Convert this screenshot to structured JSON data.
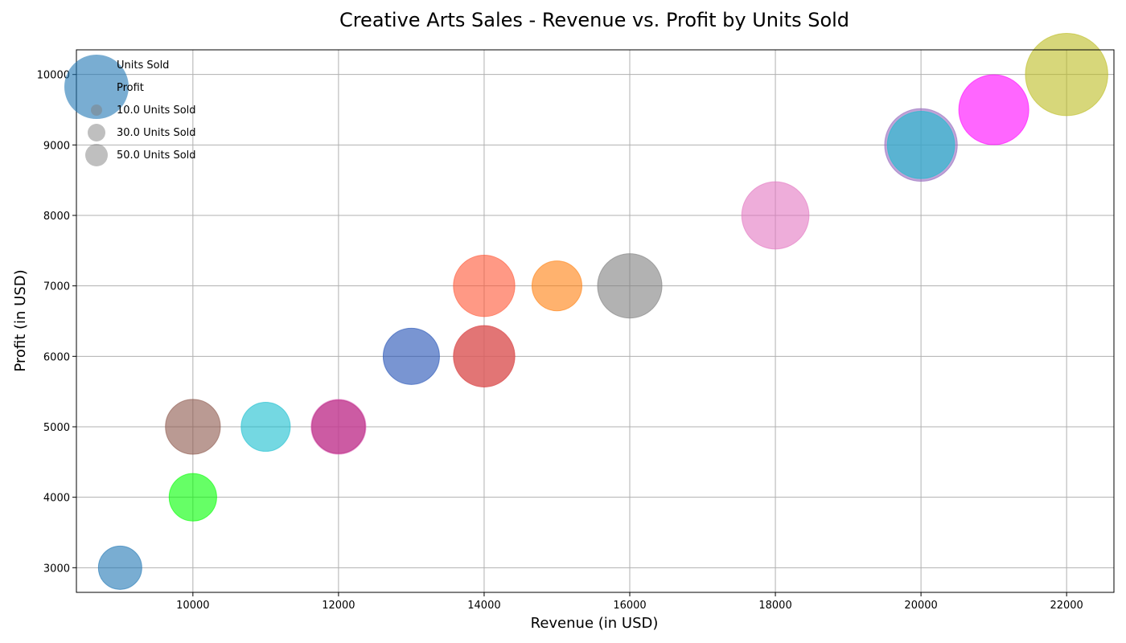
{
  "chart_data": {
    "type": "scatter",
    "title": "Creative Arts Sales - Revenue vs. Profit by Units Sold",
    "xlabel": "Revenue (in USD)",
    "ylabel": "Profit (in USD)",
    "xlim": [
      8400,
      22650
    ],
    "ylim": [
      2650,
      10350
    ],
    "xticks": [
      10000,
      12000,
      14000,
      16000,
      18000,
      20000,
      22000
    ],
    "yticks": [
      3000,
      4000,
      5000,
      6000,
      7000,
      8000,
      9000,
      10000
    ],
    "grid": true,
    "legend": {
      "placement": "top-left",
      "entries": [
        "Units Sold",
        "Profit",
        "10.0 Units Sold",
        "30.0 Units Sold",
        "50.0 Units Sold"
      ]
    },
    "points": [
      {
        "x": 9000,
        "y": 3000,
        "units": 25,
        "color": "#1f77b4"
      },
      {
        "x": 10000,
        "y": 4000,
        "units": 30,
        "color": "#00ff00"
      },
      {
        "x": 10000,
        "y": 5000,
        "units": 40,
        "color": "#8c564b"
      },
      {
        "x": 11000,
        "y": 5000,
        "units": 32,
        "color": "#17becf"
      },
      {
        "x": 12000,
        "y": 5000,
        "units": 40,
        "color": "#e377c2"
      },
      {
        "x": 12000,
        "y": 5000,
        "units": 38,
        "color": "#b5247f"
      },
      {
        "x": 13000,
        "y": 6000,
        "units": 42,
        "color": "#1f4fb4"
      },
      {
        "x": 14000,
        "y": 6000,
        "units": 50,
        "color": "#d62728"
      },
      {
        "x": 14000,
        "y": 6000,
        "units": 48,
        "color": "#e07070"
      },
      {
        "x": 14000,
        "y": 7000,
        "units": 50,
        "color": "#ff5533"
      },
      {
        "x": 15000,
        "y": 7000,
        "units": 33,
        "color": "#ff7f0e"
      },
      {
        "x": 16000,
        "y": 7000,
        "units": 55,
        "color": "#7f7f7f"
      },
      {
        "x": 18000,
        "y": 8000,
        "units": 60,
        "color": "#e377c2"
      },
      {
        "x": 20000,
        "y": 9000,
        "units": 70,
        "color": "#9467bd"
      },
      {
        "x": 20000,
        "y": 9000,
        "units": 60,
        "color": "#17becf"
      },
      {
        "x": 21000,
        "y": 9500,
        "units": 65,
        "color": "#ff00ff"
      },
      {
        "x": 22000,
        "y": 10000,
        "units": 90,
        "color": "#bcbd22"
      }
    ]
  }
}
